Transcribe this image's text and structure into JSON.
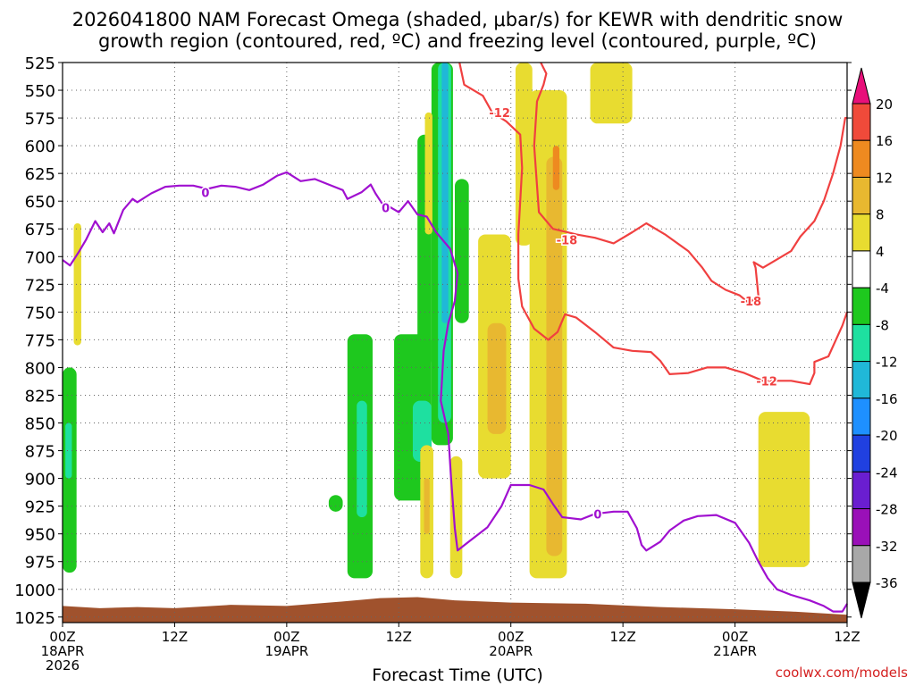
{
  "title_line1": "2026041800 NAM Forecast Omega (shaded, μbar/s) for KEWR with dendritic snow",
  "title_line2": "growth region (contoured, red, ºC) and freezing level (contoured, purple, ºC)",
  "credit": "coolwx.com/models",
  "chart_data": {
    "type": "heatmap",
    "xlabel": "Forecast Time (UTC)",
    "x_ticks": [
      {
        "hour": 0,
        "label": "00Z",
        "sub": "18APR",
        "sub2": "2026"
      },
      {
        "hour": 12,
        "label": "12Z",
        "sub": "",
        "sub2": ""
      },
      {
        "hour": 24,
        "label": "00Z",
        "sub": "19APR",
        "sub2": ""
      },
      {
        "hour": 36,
        "label": "12Z",
        "sub": "",
        "sub2": ""
      },
      {
        "hour": 48,
        "label": "00Z",
        "sub": "20APR",
        "sub2": ""
      },
      {
        "hour": 60,
        "label": "12Z",
        "sub": "",
        "sub2": ""
      },
      {
        "hour": 72,
        "label": "00Z",
        "sub": "21APR",
        "sub2": ""
      },
      {
        "hour": 84,
        "label": "12Z",
        "sub": "",
        "sub2": ""
      }
    ],
    "xlim": [
      0,
      84
    ],
    "y_ticks": [
      525,
      550,
      575,
      600,
      625,
      650,
      675,
      700,
      725,
      750,
      775,
      800,
      825,
      850,
      875,
      900,
      925,
      950,
      975,
      1000,
      1025
    ],
    "ylim": [
      525,
      1030
    ],
    "grid": true,
    "colorbar": {
      "labels": [
        "20",
        "16",
        "12",
        "8",
        "4",
        "-4",
        "-8",
        "-12",
        "-16",
        "-20",
        "-24",
        "-28",
        "-32",
        "-36"
      ],
      "colors": [
        "#e8107a",
        "#f04a3a",
        "#ee8a20",
        "#e8b830",
        "#e8dc30",
        "#ffffff",
        "#1ec81e",
        "#1ee0a0",
        "#20b8d8",
        "#1e90ff",
        "#2040e0",
        "#6a1ed0",
        "#9a10b8",
        "#a8a8a8",
        "#000000"
      ]
    },
    "omega_cells": [
      {
        "x0": 1.2,
        "x1": 2.0,
        "p0": 670,
        "p1": 780,
        "v": 4
      },
      {
        "x0": 0,
        "x1": 1.5,
        "p0": 800,
        "p1": 985,
        "v": -4
      },
      {
        "x0": 0.3,
        "x1": 1.0,
        "p0": 850,
        "p1": 900,
        "v": -8
      },
      {
        "x0": 30.5,
        "x1": 33.2,
        "p0": 770,
        "p1": 990,
        "v": -4
      },
      {
        "x0": 31.5,
        "x1": 32.6,
        "p0": 830,
        "p1": 935,
        "v": -8
      },
      {
        "x0": 28.5,
        "x1": 30.0,
        "p0": 915,
        "p1": 930,
        "v": -4
      },
      {
        "x0": 35.5,
        "x1": 39.5,
        "p0": 770,
        "p1": 920,
        "v": -4
      },
      {
        "x0": 37.5,
        "x1": 39.5,
        "p0": 830,
        "p1": 885,
        "v": -8
      },
      {
        "x0": 38.0,
        "x1": 39.5,
        "p0": 590,
        "p1": 800,
        "v": -4
      },
      {
        "x0": 39.5,
        "x1": 41.8,
        "p0": 525,
        "p1": 870,
        "v": -4
      },
      {
        "x0": 40.2,
        "x1": 41.6,
        "p0": 525,
        "p1": 850,
        "v": -8
      },
      {
        "x0": 40.6,
        "x1": 41.3,
        "p0": 525,
        "p1": 760,
        "v": -12
      },
      {
        "x0": 42.0,
        "x1": 43.5,
        "p0": 630,
        "p1": 760,
        "v": -4
      },
      {
        "x0": 38.8,
        "x1": 39.6,
        "p0": 570,
        "p1": 680,
        "v": 4
      },
      {
        "x0": 38.3,
        "x1": 39.7,
        "p0": 870,
        "p1": 990,
        "v": 4
      },
      {
        "x0": 38.7,
        "x1": 39.3,
        "p0": 900,
        "p1": 950,
        "v": 8
      },
      {
        "x0": 41.5,
        "x1": 42.8,
        "p0": 880,
        "p1": 990,
        "v": 4
      },
      {
        "x0": 44.5,
        "x1": 48.0,
        "p0": 680,
        "p1": 900,
        "v": 4
      },
      {
        "x0": 45.5,
        "x1": 47.5,
        "p0": 760,
        "p1": 860,
        "v": 8
      },
      {
        "x0": 48.5,
        "x1": 50.3,
        "p0": 525,
        "p1": 690,
        "v": 4
      },
      {
        "x0": 50.0,
        "x1": 54.0,
        "p0": 550,
        "p1": 990,
        "v": 4
      },
      {
        "x0": 51.8,
        "x1": 53.5,
        "p0": 610,
        "p1": 970,
        "v": 8
      },
      {
        "x0": 52.5,
        "x1": 53.2,
        "p0": 600,
        "p1": 640,
        "v": 12
      },
      {
        "x0": 56.5,
        "x1": 61.0,
        "p0": 525,
        "p1": 580,
        "v": 4
      },
      {
        "x0": 74.5,
        "x1": 80.0,
        "p0": 840,
        "p1": 980,
        "v": 4
      }
    ],
    "dgz_contours": [
      {
        "label": "-12",
        "points": [
          [
            42.5,
            525
          ],
          [
            43.0,
            545
          ],
          [
            45.0,
            555
          ],
          [
            46.0,
            570
          ],
          [
            47.5,
            578
          ],
          [
            49.0,
            590
          ],
          [
            49.2,
            620
          ],
          [
            48.8,
            680
          ],
          [
            48.8,
            720
          ],
          [
            49.2,
            745
          ],
          [
            50.5,
            765
          ],
          [
            52.0,
            775
          ],
          [
            53.0,
            768
          ],
          [
            53.8,
            752
          ],
          [
            55.0,
            755
          ],
          [
            57.0,
            768
          ],
          [
            59.0,
            782
          ],
          [
            61.0,
            785
          ],
          [
            63.0,
            786
          ],
          [
            64.0,
            794
          ],
          [
            65.0,
            806
          ],
          [
            67.0,
            805
          ],
          [
            69.0,
            800
          ],
          [
            71.0,
            800
          ],
          [
            73.0,
            805
          ],
          [
            75.0,
            812
          ],
          [
            77.0,
            812
          ],
          [
            78.0,
            812
          ],
          [
            80.0,
            815
          ],
          [
            80.5,
            805
          ],
          [
            80.5,
            795
          ],
          [
            82.0,
            790
          ],
          [
            83.5,
            762
          ],
          [
            84.0,
            750
          ]
        ]
      },
      {
        "label": "-18",
        "points": [
          [
            51.2,
            525
          ],
          [
            51.8,
            535
          ],
          [
            51.5,
            545
          ],
          [
            50.8,
            560
          ],
          [
            50.5,
            600
          ],
          [
            51.0,
            660
          ],
          [
            52.5,
            675
          ],
          [
            55.0,
            680
          ],
          [
            57.0,
            683
          ],
          [
            59.0,
            688
          ],
          [
            61.0,
            678
          ],
          [
            62.5,
            670
          ],
          [
            64.5,
            680
          ],
          [
            67.0,
            695
          ],
          [
            68.5,
            710
          ],
          [
            69.5,
            722
          ],
          [
            71.0,
            730
          ],
          [
            72.5,
            735
          ],
          [
            73.5,
            742
          ],
          [
            74.5,
            735
          ],
          [
            74.2,
            710
          ],
          [
            74.0,
            705
          ],
          [
            75.0,
            710
          ],
          [
            77.0,
            700
          ],
          [
            78.0,
            695
          ],
          [
            79.0,
            682
          ],
          [
            80.5,
            668
          ],
          [
            81.5,
            650
          ],
          [
            82.5,
            625
          ],
          [
            83.3,
            600
          ],
          [
            83.8,
            575
          ],
          [
            84.0,
            575
          ]
        ]
      }
    ],
    "freezing_contour": {
      "label": "0",
      "points": [
        [
          0,
          703
        ],
        [
          0.8,
          708
        ],
        [
          1.8,
          695
        ],
        [
          2.5,
          685
        ],
        [
          3.5,
          668
        ],
        [
          4.3,
          678
        ],
        [
          5.0,
          670
        ],
        [
          5.5,
          679
        ],
        [
          6.5,
          658
        ],
        [
          7.5,
          648
        ],
        [
          8.0,
          651
        ],
        [
          9.5,
          643
        ],
        [
          11.0,
          637
        ],
        [
          12.5,
          636
        ],
        [
          14.0,
          636
        ],
        [
          15.5,
          639
        ],
        [
          17.0,
          636
        ],
        [
          18.5,
          637
        ],
        [
          20.0,
          640
        ],
        [
          21.5,
          635
        ],
        [
          23.0,
          627
        ],
        [
          24.0,
          624
        ],
        [
          25.5,
          632
        ],
        [
          27.0,
          630
        ],
        [
          28.5,
          635
        ],
        [
          30.0,
          640
        ],
        [
          30.5,
          648
        ],
        [
          32.0,
          642
        ],
        [
          33.0,
          635
        ],
        [
          33.5,
          643
        ],
        [
          34.2,
          652
        ],
        [
          35.0,
          655
        ],
        [
          36.0,
          660
        ],
        [
          37.0,
          650
        ],
        [
          38.0,
          662
        ],
        [
          39.0,
          664
        ],
        [
          40.0,
          678
        ],
        [
          41.5,
          693
        ],
        [
          42.3,
          715
        ],
        [
          42.0,
          740
        ],
        [
          41.3,
          760
        ],
        [
          40.8,
          785
        ],
        [
          40.5,
          830
        ],
        [
          41.3,
          860
        ],
        [
          41.6,
          900
        ],
        [
          42.0,
          945
        ],
        [
          42.3,
          965
        ],
        [
          43.5,
          957
        ],
        [
          45.5,
          944
        ],
        [
          47.0,
          925
        ],
        [
          48.0,
          906
        ],
        [
          50.0,
          906
        ],
        [
          51.5,
          910
        ],
        [
          52.5,
          923
        ],
        [
          53.5,
          935
        ],
        [
          55.5,
          937
        ],
        [
          57.0,
          932
        ],
        [
          59.0,
          930
        ],
        [
          60.5,
          930
        ],
        [
          61.5,
          945
        ],
        [
          62.0,
          960
        ],
        [
          62.5,
          965
        ],
        [
          64.0,
          957
        ],
        [
          65.0,
          947
        ],
        [
          66.5,
          938
        ],
        [
          68.0,
          934
        ],
        [
          70.0,
          933
        ],
        [
          72.0,
          940
        ],
        [
          73.5,
          958
        ],
        [
          74.5,
          975
        ],
        [
          75.5,
          990
        ],
        [
          76.5,
          1000
        ],
        [
          78.0,
          1005
        ],
        [
          80.0,
          1010
        ],
        [
          81.5,
          1015
        ],
        [
          82.5,
          1020
        ],
        [
          83.5,
          1020
        ],
        [
          84.0,
          1013
        ]
      ]
    },
    "terrain": [
      [
        0,
        1015
      ],
      [
        4,
        1017
      ],
      [
        8,
        1016
      ],
      [
        12,
        1017
      ],
      [
        18,
        1014
      ],
      [
        24,
        1015
      ],
      [
        30,
        1011
      ],
      [
        34,
        1008
      ],
      [
        38,
        1007
      ],
      [
        42,
        1010
      ],
      [
        48,
        1012
      ],
      [
        56,
        1013
      ],
      [
        64,
        1016
      ],
      [
        72,
        1018
      ],
      [
        78,
        1020
      ],
      [
        84,
        1023
      ]
    ],
    "contour_labels": [
      {
        "text": "0",
        "x": 15.3,
        "p": 642,
        "color": "purple"
      },
      {
        "text": "0",
        "x": 34.6,
        "p": 656,
        "color": "purple"
      },
      {
        "text": "0",
        "x": 57.3,
        "p": 932,
        "color": "purple"
      },
      {
        "text": "-12",
        "x": 46.8,
        "p": 570,
        "color": "red"
      },
      {
        "text": "-18",
        "x": 54.0,
        "p": 685,
        "color": "red"
      },
      {
        "text": "-18",
        "x": 73.7,
        "p": 740,
        "color": "red"
      },
      {
        "text": "-12",
        "x": 75.4,
        "p": 812,
        "color": "red"
      }
    ],
    "colors": {
      "purple": "#a010d0",
      "red": "#f04040",
      "terrain": "#a0522d",
      "grid": "#666666"
    }
  }
}
